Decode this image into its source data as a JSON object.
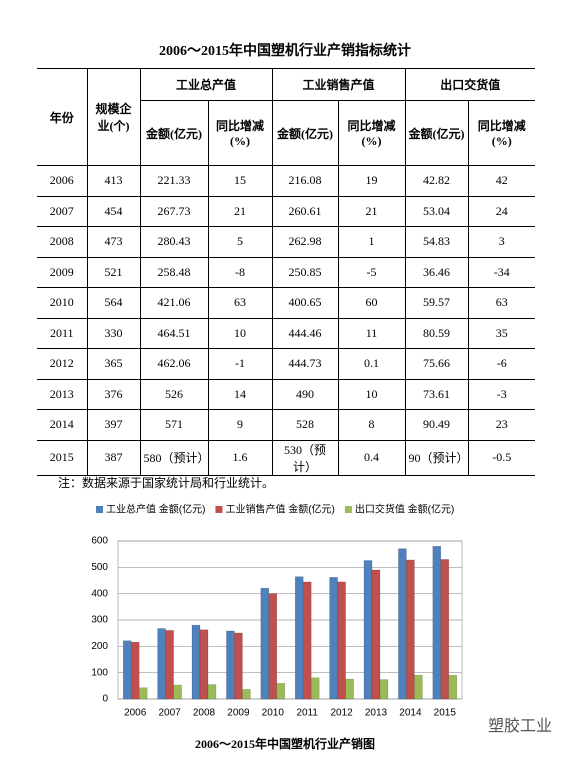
{
  "title": "2006～2015年中国塑机行业产销指标统计",
  "table": {
    "headers": {
      "year": "年份",
      "companies": "规模企业(个)",
      "groups": [
        "工业总产值",
        "工业销售产值",
        "出口交货值"
      ],
      "sub": [
        "金额(亿元)",
        "同比增减(%)",
        "金额(亿元)",
        "同比增减(%)",
        "金额(亿元)",
        "同比增减(%)"
      ]
    },
    "rows": [
      [
        "2006",
        "413",
        "221.33",
        "15",
        "216.08",
        "19",
        "42.82",
        "42"
      ],
      [
        "2007",
        "454",
        "267.73",
        "21",
        "260.61",
        "21",
        "53.04",
        "24"
      ],
      [
        "2008",
        "473",
        "280.43",
        "5",
        "262.98",
        "1",
        "54.83",
        "3"
      ],
      [
        "2009",
        "521",
        "258.48",
        "-8",
        "250.85",
        "-5",
        "36.46",
        "-34"
      ],
      [
        "2010",
        "564",
        "421.06",
        "63",
        "400.65",
        "60",
        "59.57",
        "63"
      ],
      [
        "2011",
        "330",
        "464.51",
        "10",
        "444.46",
        "11",
        "80.59",
        "35"
      ],
      [
        "2012",
        "365",
        "462.06",
        "-1",
        "444.73",
        "0.1",
        "75.66",
        "-6"
      ],
      [
        "2013",
        "376",
        "526",
        "14",
        "490",
        "10",
        "73.61",
        "-3"
      ],
      [
        "2014",
        "397",
        "571",
        "9",
        "528",
        "8",
        "90.49",
        "23"
      ],
      [
        "2015",
        "387",
        "580（预计）",
        "1.6",
        "530（预计）",
        "0.4",
        "90（预计）",
        "-0.5"
      ]
    ]
  },
  "note": "注：数据来源于国家统计局和行业统计。",
  "chart_data": {
    "type": "bar",
    "categories": [
      "2006",
      "2007",
      "2008",
      "2009",
      "2010",
      "2011",
      "2012",
      "2013",
      "2014",
      "2015"
    ],
    "series": [
      {
        "name": "工业总产值 金额(亿元)",
        "color": "#4f81bd",
        "values": [
          221.33,
          267.73,
          280.43,
          258.48,
          421.06,
          464.51,
          462.06,
          526,
          571,
          580
        ]
      },
      {
        "name": "工业销售产值 金额(亿元)",
        "color": "#c0504d",
        "values": [
          216.08,
          260.61,
          262.98,
          250.85,
          400.65,
          444.46,
          444.73,
          490,
          528,
          530
        ]
      },
      {
        "name": "出口交货值 金额(亿元)",
        "color": "#9bbb59",
        "values": [
          42.82,
          53.04,
          54.83,
          36.46,
          59.57,
          80.59,
          75.66,
          73.61,
          90.49,
          90
        ]
      }
    ],
    "ylim": [
      0,
      600
    ],
    "yticks": [
      0,
      100,
      200,
      300,
      400,
      500,
      600
    ],
    "grid": true
  },
  "caption": "2006～2015年中国塑机行业产销图",
  "watermark": "塑胶工业"
}
